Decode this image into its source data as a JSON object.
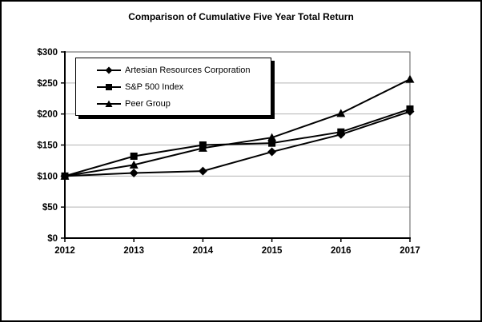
{
  "chart": {
    "title": "Comparison of Cumulative Five Year Total Return"
  },
  "chart_data": {
    "type": "line",
    "title": "Comparison of Cumulative Five Year Total Return",
    "categories": [
      "2012",
      "2013",
      "2014",
      "2015",
      "2016",
      "2017"
    ],
    "series": [
      {
        "name": "Artesian Resources Corporation",
        "marker": "diamond",
        "values": [
          100,
          105,
          108,
          139,
          167,
          204
        ]
      },
      {
        "name": "S&P 500 Index",
        "marker": "square",
        "values": [
          100,
          132,
          150,
          153,
          171,
          208
        ]
      },
      {
        "name": "Peer Group",
        "marker": "triangle",
        "values": [
          100,
          118,
          145,
          162,
          201,
          256
        ]
      }
    ],
    "xlabel": "",
    "ylabel": "",
    "ylim": [
      0,
      300
    ],
    "y_tick_step": 50,
    "y_tick_labels": [
      "$0",
      "$50",
      "$100",
      "$150",
      "$200",
      "$250",
      "$300"
    ],
    "grid": "horizontal",
    "legend_position": "upper-left",
    "colors": {
      "line": "#000000",
      "grid": "#b3b3b3",
      "axis": "#000000",
      "plot_border": "#595959",
      "background": "#ffffff",
      "text": "#000000"
    }
  }
}
